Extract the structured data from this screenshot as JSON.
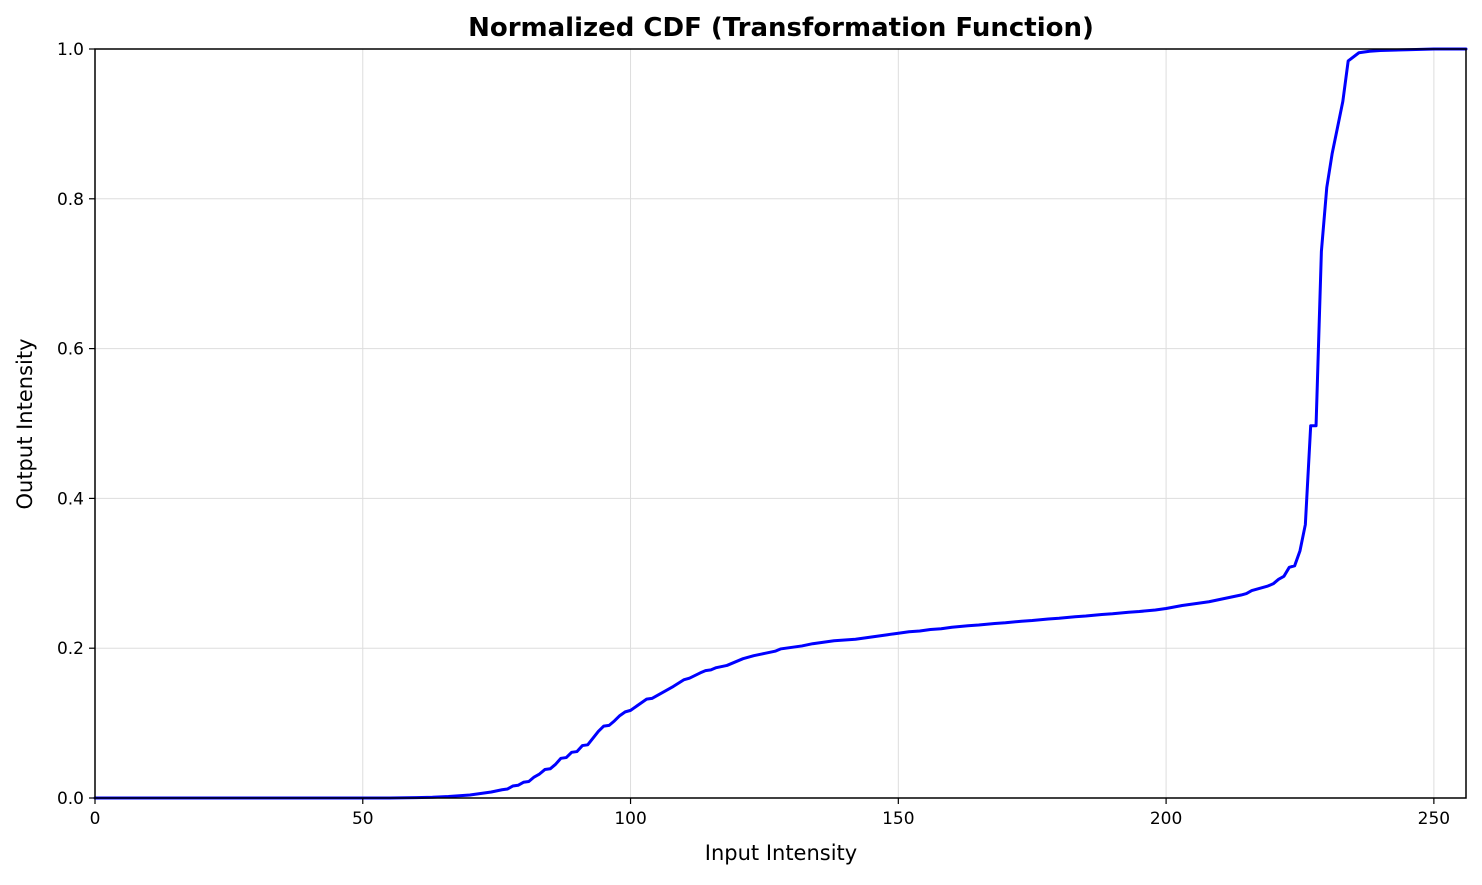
{
  "chart_data": {
    "type": "line",
    "title": "Normalized CDF (Transformation Function)",
    "xlabel": "Input Intensity",
    "ylabel": "Output Intensity",
    "xlim": [
      0,
      256
    ],
    "ylim": [
      0,
      1
    ],
    "x_ticks": [
      0,
      50,
      100,
      150,
      200,
      250
    ],
    "y_ticks": [
      0.0,
      0.2,
      0.4,
      0.6,
      0.8,
      1.0
    ],
    "x_tick_labels": [
      "0",
      "50",
      "100",
      "150",
      "200",
      "250"
    ],
    "y_tick_labels": [
      "0.0",
      "0.2",
      "0.4",
      "0.6",
      "0.8",
      "1.0"
    ],
    "grid": true,
    "line_color": "#0000ff",
    "grid_color": "#dddddd",
    "series": [
      {
        "x": [
          0,
          55,
          60,
          63,
          66,
          68,
          70,
          72,
          74,
          76,
          77,
          78,
          79,
          80,
          81,
          82,
          83,
          84,
          85,
          86,
          87,
          88,
          89,
          90,
          91,
          92,
          93,
          94,
          95,
          96,
          97,
          98,
          99,
          100,
          102,
          103,
          104,
          106,
          108,
          110,
          111,
          113,
          114,
          115,
          116,
          118,
          120,
          121,
          123,
          125,
          127,
          128,
          130,
          132,
          134,
          136,
          138,
          140,
          142,
          144,
          146,
          148,
          150,
          152,
          154,
          156,
          158,
          160,
          163,
          165,
          168,
          170,
          173,
          175,
          178,
          180,
          183,
          185,
          188,
          190,
          193,
          195,
          198,
          200,
          203,
          205,
          208,
          210,
          212,
          214,
          215,
          216,
          217,
          219,
          220,
          221,
          222,
          223,
          224,
          225,
          226,
          227,
          228,
          229,
          230,
          231,
          232,
          233,
          234,
          236,
          238,
          240,
          245,
          250,
          256
        ],
        "y": [
          0.0,
          0.0,
          0.0005,
          0.001,
          0.002,
          0.003,
          0.004,
          0.006,
          0.008,
          0.011,
          0.012,
          0.016,
          0.017,
          0.021,
          0.022,
          0.028,
          0.032,
          0.038,
          0.039,
          0.045,
          0.053,
          0.054,
          0.061,
          0.062,
          0.07,
          0.071,
          0.08,
          0.089,
          0.096,
          0.097,
          0.103,
          0.11,
          0.115,
          0.117,
          0.127,
          0.132,
          0.133,
          0.141,
          0.149,
          0.158,
          0.16,
          0.167,
          0.17,
          0.171,
          0.174,
          0.177,
          0.183,
          0.186,
          0.19,
          0.193,
          0.196,
          0.199,
          0.201,
          0.203,
          0.206,
          0.208,
          0.21,
          0.211,
          0.212,
          0.214,
          0.216,
          0.218,
          0.22,
          0.222,
          0.223,
          0.225,
          0.226,
          0.228,
          0.23,
          0.231,
          0.233,
          0.234,
          0.236,
          0.237,
          0.239,
          0.24,
          0.242,
          0.243,
          0.245,
          0.246,
          0.248,
          0.249,
          0.251,
          0.253,
          0.257,
          0.259,
          0.262,
          0.265,
          0.268,
          0.271,
          0.273,
          0.277,
          0.279,
          0.283,
          0.286,
          0.292,
          0.296,
          0.308,
          0.31,
          0.33,
          0.365,
          0.497,
          0.497,
          0.73,
          0.815,
          0.86,
          0.895,
          0.93,
          0.984,
          0.995,
          0.997,
          0.998,
          0.999,
          1.0,
          1.0
        ]
      }
    ]
  }
}
